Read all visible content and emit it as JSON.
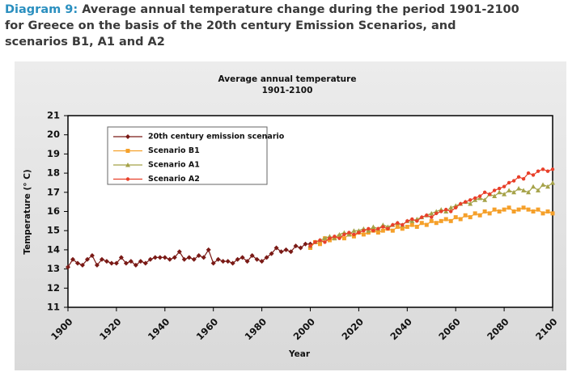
{
  "header": {
    "label": "Diagram 9:",
    "title": "Average annual temperature change during the period 1901-2100 for Greece on the basis of the 20th century Emission Scenarios, and scenarios B1, A1 and A2"
  },
  "chart_data": {
    "type": "line",
    "title": "Average annual temperature",
    "subtitle": "1901-2100",
    "x_label": "Year",
    "y_label": "Temperature (° C)",
    "xlim": [
      1900,
      2100
    ],
    "xticks": [
      1900,
      1920,
      1940,
      1960,
      1980,
      2000,
      2020,
      2040,
      2060,
      2080,
      2100
    ],
    "ylim": [
      11,
      21
    ],
    "yticks": [
      11,
      12,
      13,
      14,
      15,
      16,
      17,
      18,
      19,
      20,
      21
    ],
    "grid": false,
    "legend": "upper left",
    "x": [
      1900,
      1902,
      1904,
      1906,
      1908,
      1910,
      1912,
      1914,
      1916,
      1918,
      1920,
      1922,
      1924,
      1926,
      1928,
      1930,
      1932,
      1934,
      1936,
      1938,
      1940,
      1942,
      1944,
      1946,
      1948,
      1950,
      1952,
      1954,
      1956,
      1958,
      1960,
      1962,
      1964,
      1966,
      1968,
      1970,
      1972,
      1974,
      1976,
      1978,
      1980,
      1982,
      1984,
      1986,
      1988,
      1990,
      1992,
      1994,
      1996,
      1998,
      2000,
      2002,
      2004,
      2006,
      2008,
      2010,
      2012,
      2014,
      2016,
      2018,
      2020,
      2022,
      2024,
      2026,
      2028,
      2030,
      2032,
      2034,
      2036,
      2038,
      2040,
      2042,
      2044,
      2046,
      2048,
      2050,
      2052,
      2054,
      2056,
      2058,
      2060,
      2062,
      2064,
      2066,
      2068,
      2070,
      2072,
      2074,
      2076,
      2078,
      2080,
      2082,
      2084,
      2086,
      2088,
      2090,
      2092,
      2094,
      2096,
      2098,
      2100
    ],
    "series": [
      {
        "name": "20th century emission scenario",
        "color": "#7a1a16",
        "marker": "diamond",
        "values": [
          13.1,
          13.5,
          13.3,
          13.2,
          13.5,
          13.7,
          13.2,
          13.5,
          13.4,
          13.3,
          13.3,
          13.6,
          13.3,
          13.4,
          13.2,
          13.4,
          13.3,
          13.5,
          13.6,
          13.6,
          13.6,
          13.5,
          13.6,
          13.9,
          13.5,
          13.6,
          13.5,
          13.7,
          13.6,
          14.0,
          13.3,
          13.5,
          13.4,
          13.4,
          13.3,
          13.5,
          13.6,
          13.4,
          13.7,
          13.5,
          13.4,
          13.6,
          13.8,
          14.1,
          13.9,
          14.0,
          13.9,
          14.2,
          14.1,
          14.3,
          14.3,
          null,
          null,
          null,
          null,
          null,
          null,
          null,
          null,
          null,
          null,
          null,
          null,
          null,
          null,
          null,
          null,
          null,
          null,
          null,
          null,
          null,
          null,
          null,
          null,
          null,
          null,
          null,
          null,
          null,
          null,
          null,
          null,
          null,
          null,
          null,
          null,
          null,
          null,
          null,
          null,
          null,
          null,
          null,
          null,
          null,
          null,
          null,
          null,
          null,
          null
        ]
      },
      {
        "name": "Scenario B1",
        "color": "#f5a02a",
        "marker": "square",
        "values": [
          null,
          null,
          null,
          null,
          null,
          null,
          null,
          null,
          null,
          null,
          null,
          null,
          null,
          null,
          null,
          null,
          null,
          null,
          null,
          null,
          null,
          null,
          null,
          null,
          null,
          null,
          null,
          null,
          null,
          null,
          null,
          null,
          null,
          null,
          null,
          null,
          null,
          null,
          null,
          null,
          null,
          null,
          null,
          null,
          null,
          null,
          null,
          null,
          null,
          null,
          14.1,
          14.4,
          14.3,
          14.6,
          14.5,
          14.6,
          14.7,
          14.6,
          14.8,
          14.7,
          14.9,
          14.8,
          14.9,
          15.0,
          14.9,
          15.0,
          15.1,
          15.0,
          15.2,
          15.1,
          15.2,
          15.3,
          15.2,
          15.4,
          15.3,
          15.5,
          15.4,
          15.5,
          15.6,
          15.5,
          15.7,
          15.6,
          15.8,
          15.7,
          15.9,
          15.8,
          16.0,
          15.9,
          16.1,
          16.0,
          16.1,
          16.2,
          16.0,
          16.1,
          16.2,
          16.1,
          16.0,
          16.1,
          15.9,
          16.0,
          15.9
        ]
      },
      {
        "name": "Scenario A1",
        "color": "#a5a248",
        "marker": "triangle",
        "values": [
          null,
          null,
          null,
          null,
          null,
          null,
          null,
          null,
          null,
          null,
          null,
          null,
          null,
          null,
          null,
          null,
          null,
          null,
          null,
          null,
          null,
          null,
          null,
          null,
          null,
          null,
          null,
          null,
          null,
          null,
          null,
          null,
          null,
          null,
          null,
          null,
          null,
          null,
          null,
          null,
          null,
          null,
          null,
          null,
          null,
          null,
          null,
          null,
          null,
          null,
          14.2,
          14.4,
          14.5,
          14.6,
          14.7,
          14.6,
          14.8,
          14.9,
          14.8,
          15.0,
          15.0,
          15.1,
          15.0,
          15.2,
          15.1,
          15.3,
          15.2,
          15.3,
          15.4,
          15.3,
          15.5,
          15.5,
          15.6,
          15.7,
          15.8,
          15.9,
          16.0,
          16.1,
          16.0,
          16.2,
          16.3,
          16.4,
          16.5,
          16.4,
          16.6,
          16.7,
          16.6,
          16.9,
          16.8,
          17.0,
          16.9,
          17.1,
          17.0,
          17.2,
          17.1,
          17.0,
          17.3,
          17.1,
          17.4,
          17.3,
          17.5
        ]
      },
      {
        "name": "Scenario A2",
        "color": "#e8402a",
        "marker": "circle",
        "values": [
          null,
          null,
          null,
          null,
          null,
          null,
          null,
          null,
          null,
          null,
          null,
          null,
          null,
          null,
          null,
          null,
          null,
          null,
          null,
          null,
          null,
          null,
          null,
          null,
          null,
          null,
          null,
          null,
          null,
          null,
          null,
          null,
          null,
          null,
          null,
          null,
          null,
          null,
          null,
          null,
          null,
          null,
          null,
          null,
          null,
          null,
          null,
          null,
          null,
          null,
          14.2,
          14.4,
          14.5,
          14.4,
          14.6,
          14.7,
          14.6,
          14.8,
          14.9,
          14.8,
          14.9,
          15.0,
          15.1,
          15.0,
          15.1,
          15.2,
          15.1,
          15.3,
          15.4,
          15.3,
          15.5,
          15.6,
          15.5,
          15.7,
          15.8,
          15.7,
          15.9,
          16.0,
          16.1,
          16.0,
          16.2,
          16.4,
          16.5,
          16.6,
          16.7,
          16.8,
          17.0,
          16.9,
          17.1,
          17.2,
          17.3,
          17.5,
          17.6,
          17.8,
          17.7,
          18.0,
          17.9,
          18.1,
          18.2,
          18.1,
          18.2
        ]
      }
    ]
  }
}
